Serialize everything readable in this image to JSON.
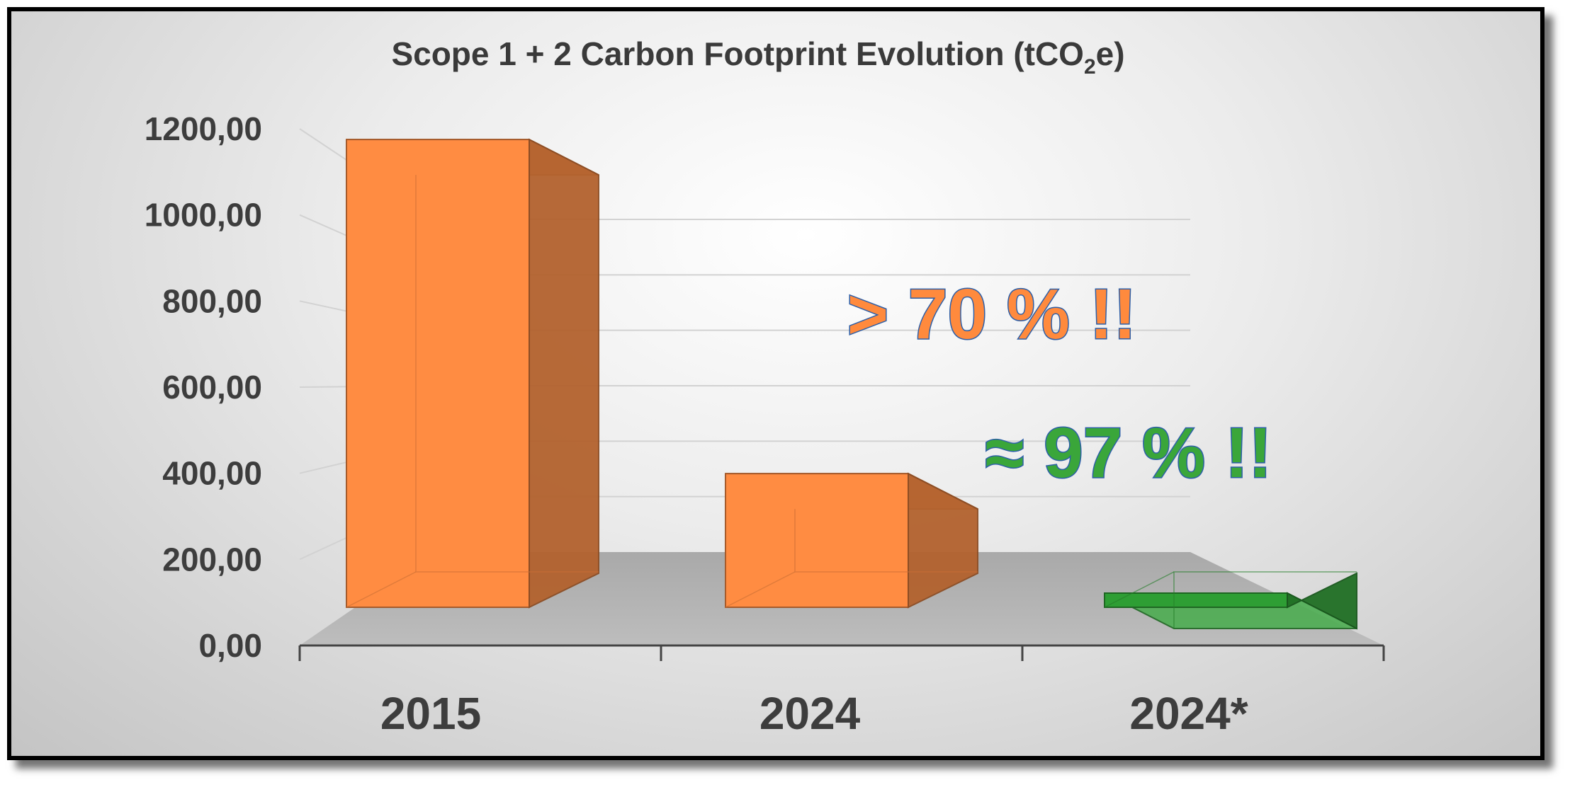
{
  "chart_data": {
    "type": "bar",
    "title": "Scope 1 + 2 Carbon Footprint Evolution (tCO₂e)",
    "title_parts": {
      "before": "Scope 1 + 2 Carbon Footprint Evolution (tCO",
      "sub": "2",
      "after": "e)"
    },
    "categories": [
      "2015",
      "2024",
      "2024*"
    ],
    "values": [
      1120,
      320,
      25
    ],
    "bar_colors": [
      "#ff8c42",
      "#ff8c42",
      "#2e9e34"
    ],
    "ylim": [
      0,
      1200
    ],
    "yticks": [
      "0,00",
      "200,00",
      "400,00",
      "600,00",
      "800,00",
      "1000,00",
      "1200,00"
    ],
    "grid": true,
    "annotations": [
      {
        "text": "> 70 % !!",
        "color": "#ff8a3d"
      },
      {
        "text": "≈ 97 % !!",
        "color": "#3aa63a"
      }
    ],
    "annotation_outline": "#2d5fa8"
  }
}
